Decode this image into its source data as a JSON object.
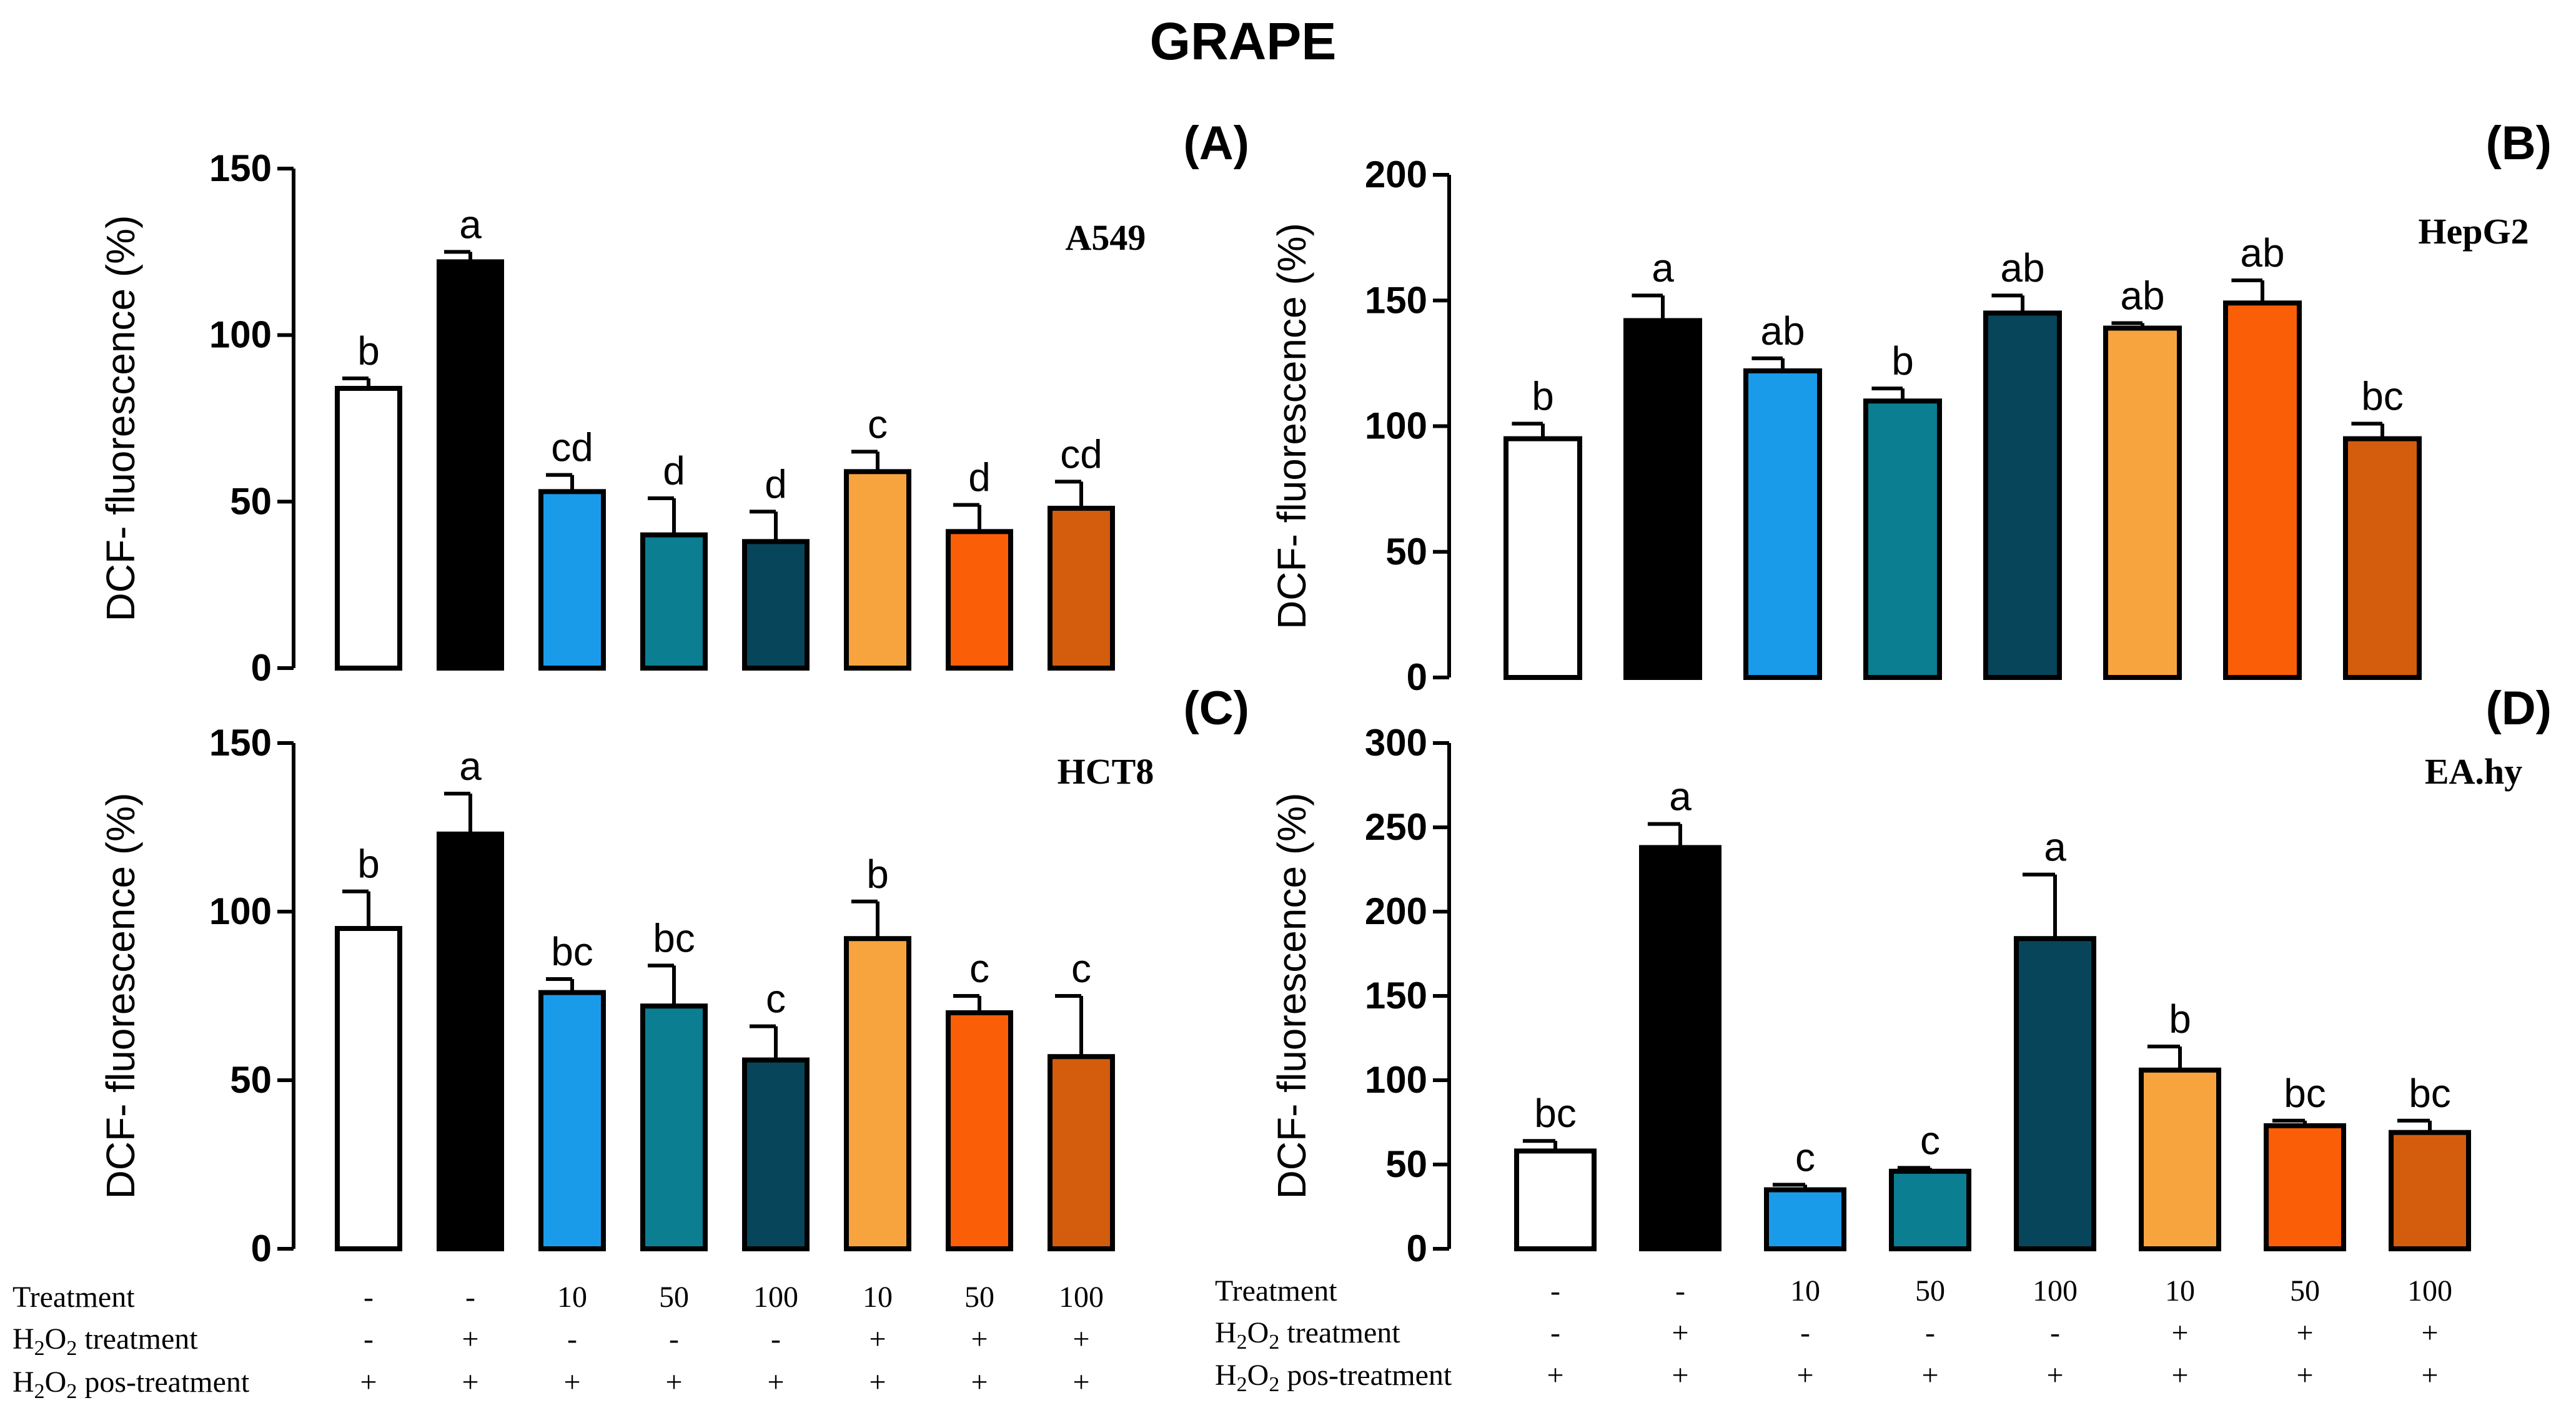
{
  "figure": {
    "title": "GRAPE"
  },
  "colors": {
    "axis": "#000000",
    "bar_stroke": "#000000",
    "background": "#ffffff"
  },
  "table": {
    "row_labels": [
      "Treatment",
      "H2O2 treatment",
      "H2O2 pos-treatment"
    ],
    "treatment": [
      "-",
      "-",
      "10",
      "50",
      "100",
      "10",
      "50",
      "100"
    ],
    "h2o2_treatment": [
      "-",
      "+",
      "-",
      "-",
      "-",
      "+",
      "+",
      "+"
    ],
    "h2o2_pos_treatment": [
      "+",
      "+",
      "+",
      "+",
      "+",
      "+",
      "+",
      "+"
    ]
  },
  "chart_data": [
    {
      "id": "A",
      "type": "bar",
      "panel_label": "(A)",
      "cell_line": "A549",
      "ylabel": "DCF- fluorescence (%)",
      "ylim": [
        0,
        150
      ],
      "yticks": [
        0,
        50,
        100,
        150
      ],
      "bar_colors": [
        "#ffffff",
        "#000000",
        "#1a9bea",
        "#0b7e92",
        "#07455a",
        "#f8a43e",
        "#fa5e06",
        "#d35d0d"
      ],
      "values": [
        84,
        122,
        53,
        40,
        38,
        59,
        41,
        48
      ],
      "errors": [
        3,
        3,
        5,
        11,
        9,
        6,
        8,
        8
      ],
      "letters": [
        "b",
        "a",
        "cd",
        "d",
        "d",
        "c",
        "d",
        "cd"
      ]
    },
    {
      "id": "B",
      "type": "bar",
      "panel_label": "(B)",
      "cell_line": "HepG2",
      "ylabel": "DCF- fluorescence (%)",
      "ylim": [
        0,
        200
      ],
      "yticks": [
        0,
        50,
        100,
        150,
        200
      ],
      "bar_colors": [
        "#ffffff",
        "#000000",
        "#1a9bea",
        "#0b7e92",
        "#07455a",
        "#f8a43e",
        "#fa5e06",
        "#d35d0d"
      ],
      "values": [
        95,
        142,
        122,
        110,
        145,
        139,
        149,
        95
      ],
      "errors": [
        6,
        10,
        5,
        5,
        7,
        2,
        9,
        6
      ],
      "letters": [
        "b",
        "a",
        "ab",
        "b",
        "ab",
        "ab",
        "ab",
        "bc"
      ]
    },
    {
      "id": "C",
      "type": "bar",
      "panel_label": "(C)",
      "cell_line": "HCT8",
      "ylabel": "DCF- fluorescence (%)",
      "ylim": [
        0,
        150
      ],
      "yticks": [
        0,
        50,
        100,
        150
      ],
      "bar_colors": [
        "#ffffff",
        "#000000",
        "#1a9bea",
        "#0b7e92",
        "#07455a",
        "#f8a43e",
        "#fa5e06",
        "#d35d0d"
      ],
      "values": [
        95,
        123,
        76,
        72,
        56,
        92,
        70,
        57
      ],
      "errors": [
        11,
        12,
        4,
        12,
        10,
        11,
        5,
        18
      ],
      "letters": [
        "b",
        "a",
        "bc",
        "bc",
        "c",
        "b",
        "c",
        "c"
      ]
    },
    {
      "id": "D",
      "type": "bar",
      "panel_label": "(D)",
      "cell_line": "EA.hy",
      "ylabel": "DCF- fluorescence (%)",
      "ylim": [
        0,
        300
      ],
      "yticks": [
        0,
        50,
        100,
        150,
        200,
        250,
        300
      ],
      "bar_colors": [
        "#ffffff",
        "#000000",
        "#1a9bea",
        "#0b7e92",
        "#07455a",
        "#f8a43e",
        "#fa5e06",
        "#d35d0d"
      ],
      "values": [
        58,
        238,
        35,
        46,
        184,
        106,
        73,
        69
      ],
      "errors": [
        6,
        14,
        3,
        2,
        38,
        14,
        3,
        7
      ],
      "letters": [
        "bc",
        "a",
        "c",
        "c",
        "a",
        "b",
        "bc",
        "bc"
      ]
    }
  ]
}
